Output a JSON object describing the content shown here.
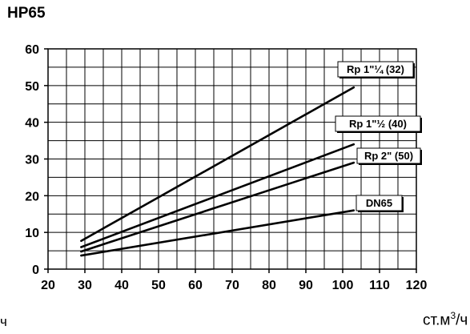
{
  "chart_data": {
    "type": "line",
    "title": "HP65",
    "xlabel": "ст.м3/ч",
    "xlabel_base": "ст.м",
    "xlabel_sup": "3",
    "xlabel_tail": "/ч",
    "ylabel": "",
    "left_fragment": "ч",
    "xlim": [
      20,
      120
    ],
    "ylim": [
      0,
      60
    ],
    "x_step_minor": 5,
    "x_ticks": [
      20,
      30,
      40,
      50,
      60,
      70,
      80,
      90,
      100,
      110,
      120
    ],
    "y_ticks": [
      0,
      10,
      20,
      30,
      40,
      50,
      60
    ],
    "y_step_minor": 5,
    "grid": true,
    "series": [
      {
        "name": "Rp 1\"¼ (32)",
        "x": [
          29,
          103
        ],
        "y": [
          7.7,
          49.5
        ]
      },
      {
        "name": "Rp 1\"½ (40)",
        "x": [
          29,
          103
        ],
        "y": [
          6.0,
          34.0
        ]
      },
      {
        "name": "Rp 2\" (50)",
        "x": [
          29,
          103
        ],
        "y": [
          4.8,
          29.0
        ]
      },
      {
        "name": "DN65",
        "x": [
          29,
          103
        ],
        "y": [
          3.7,
          16.0
        ]
      }
    ]
  }
}
